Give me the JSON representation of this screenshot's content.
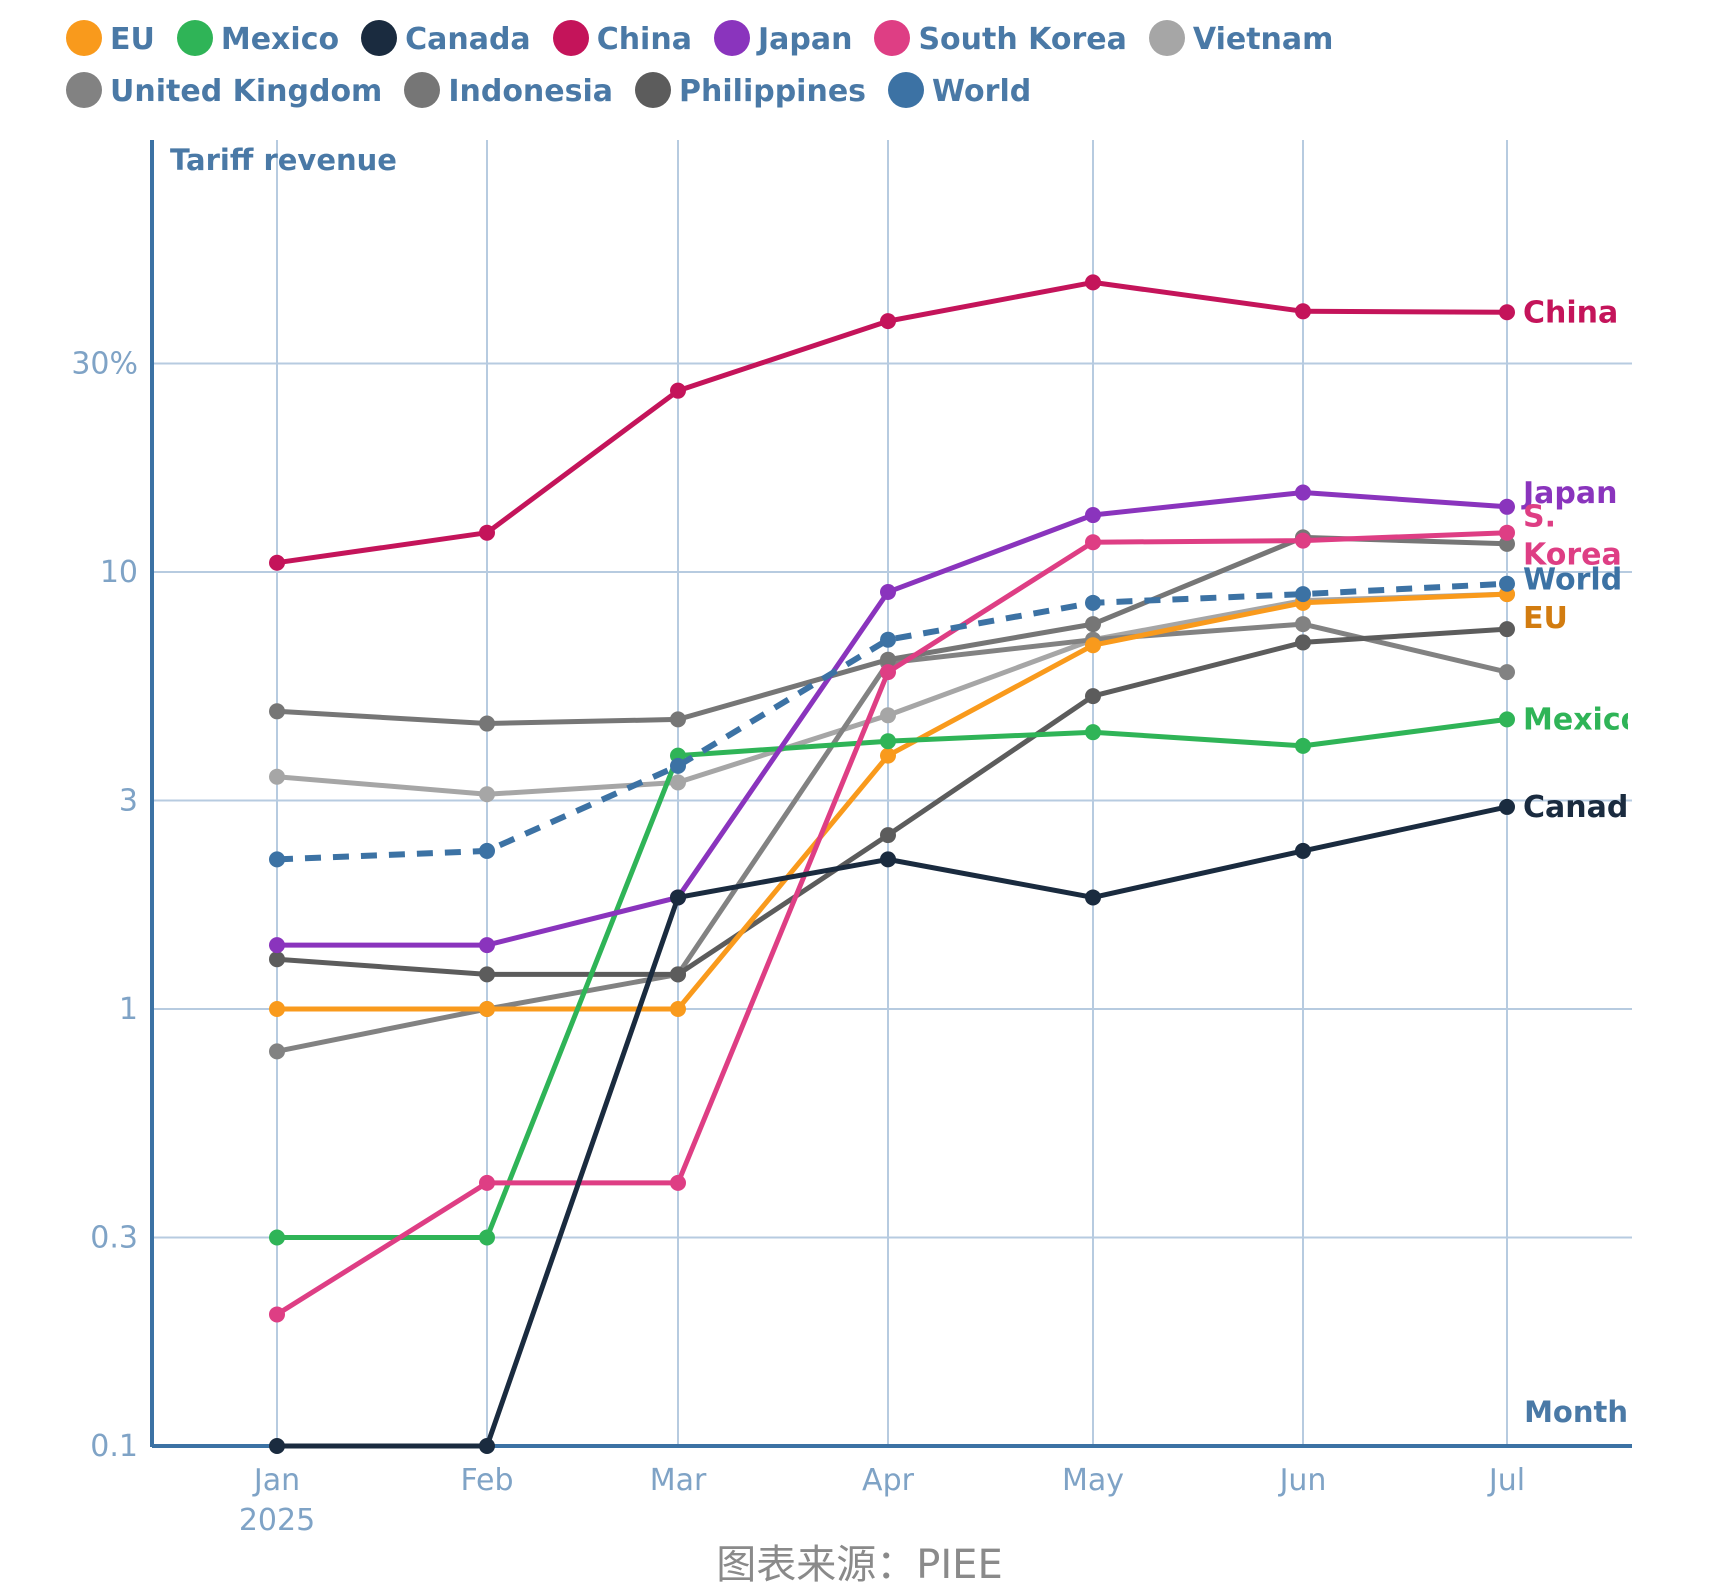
{
  "chart_data": {
    "type": "line",
    "y_scale": "log",
    "ylim": [
      0.1,
      60
    ],
    "ylabel": "Tariff revenue",
    "xlabel": "Month",
    "categories": [
      "Jan",
      "Feb",
      "Mar",
      "Apr",
      "May",
      "Jun",
      "Jul"
    ],
    "x_year_label": "2025",
    "y_ticks": [
      {
        "value": 0.1,
        "label": "0.1"
      },
      {
        "value": 0.3,
        "label": "0.3"
      },
      {
        "value": 1,
        "label": "1"
      },
      {
        "value": 3,
        "label": "3"
      },
      {
        "value": 10,
        "label": "10"
      },
      {
        "value": 30,
        "label": "30%"
      }
    ],
    "series": [
      {
        "name": "EU",
        "color": "#f99a1c",
        "values": [
          1.0,
          1.0,
          1.0,
          3.8,
          6.8,
          8.5,
          8.9
        ],
        "end_label": "EU",
        "end_color": "#d27c10"
      },
      {
        "name": "Mexico",
        "color": "#2fb457",
        "values": [
          0.3,
          0.3,
          3.8,
          4.1,
          4.3,
          4.0,
          4.6
        ],
        "end_label": "Mexico"
      },
      {
        "name": "Canada",
        "color": "#1a2b3f",
        "values": [
          0.1,
          0.1,
          1.8,
          2.2,
          1.8,
          2.3,
          2.9
        ],
        "end_label": "Canada"
      },
      {
        "name": "China",
        "color": "#c4145a",
        "values": [
          10.5,
          12.3,
          26.0,
          37.5,
          46.0,
          39.5,
          39.3
        ],
        "end_label": "China"
      },
      {
        "name": "Japan",
        "color": "#8a34bd",
        "values": [
          1.4,
          1.4,
          1.8,
          9.0,
          13.5,
          15.2,
          14.1
        ],
        "end_label": "Japan"
      },
      {
        "name": "South Korea",
        "color": "#de3e84",
        "values": [
          0.2,
          0.4,
          0.4,
          5.9,
          11.7,
          11.8,
          12.3
        ],
        "end_label_lines": [
          "S.",
          "Korea"
        ]
      },
      {
        "name": "Vietnam",
        "color": "#a6a6a6",
        "values": [
          3.4,
          3.1,
          3.3,
          4.7,
          7.0,
          8.6,
          8.9
        ]
      },
      {
        "name": "United Kingdom",
        "color": "#828282",
        "values": [
          0.8,
          1.0,
          1.2,
          6.2,
          7.0,
          7.6,
          5.9
        ]
      },
      {
        "name": "Indonesia",
        "color": "#767676",
        "values": [
          4.8,
          4.5,
          4.6,
          6.3,
          7.6,
          12.0,
          11.6
        ]
      },
      {
        "name": "Philippines",
        "color": "#5c5c5c",
        "values": [
          1.3,
          1.2,
          1.2,
          2.5,
          5.2,
          6.9,
          7.4
        ]
      },
      {
        "name": "World",
        "color": "#3c72a4",
        "values": [
          2.2,
          2.3,
          3.6,
          7.0,
          8.5,
          8.9,
          9.4
        ],
        "dashed": true,
        "end_label": "World"
      }
    ]
  },
  "source": "图表来源：PIEE"
}
